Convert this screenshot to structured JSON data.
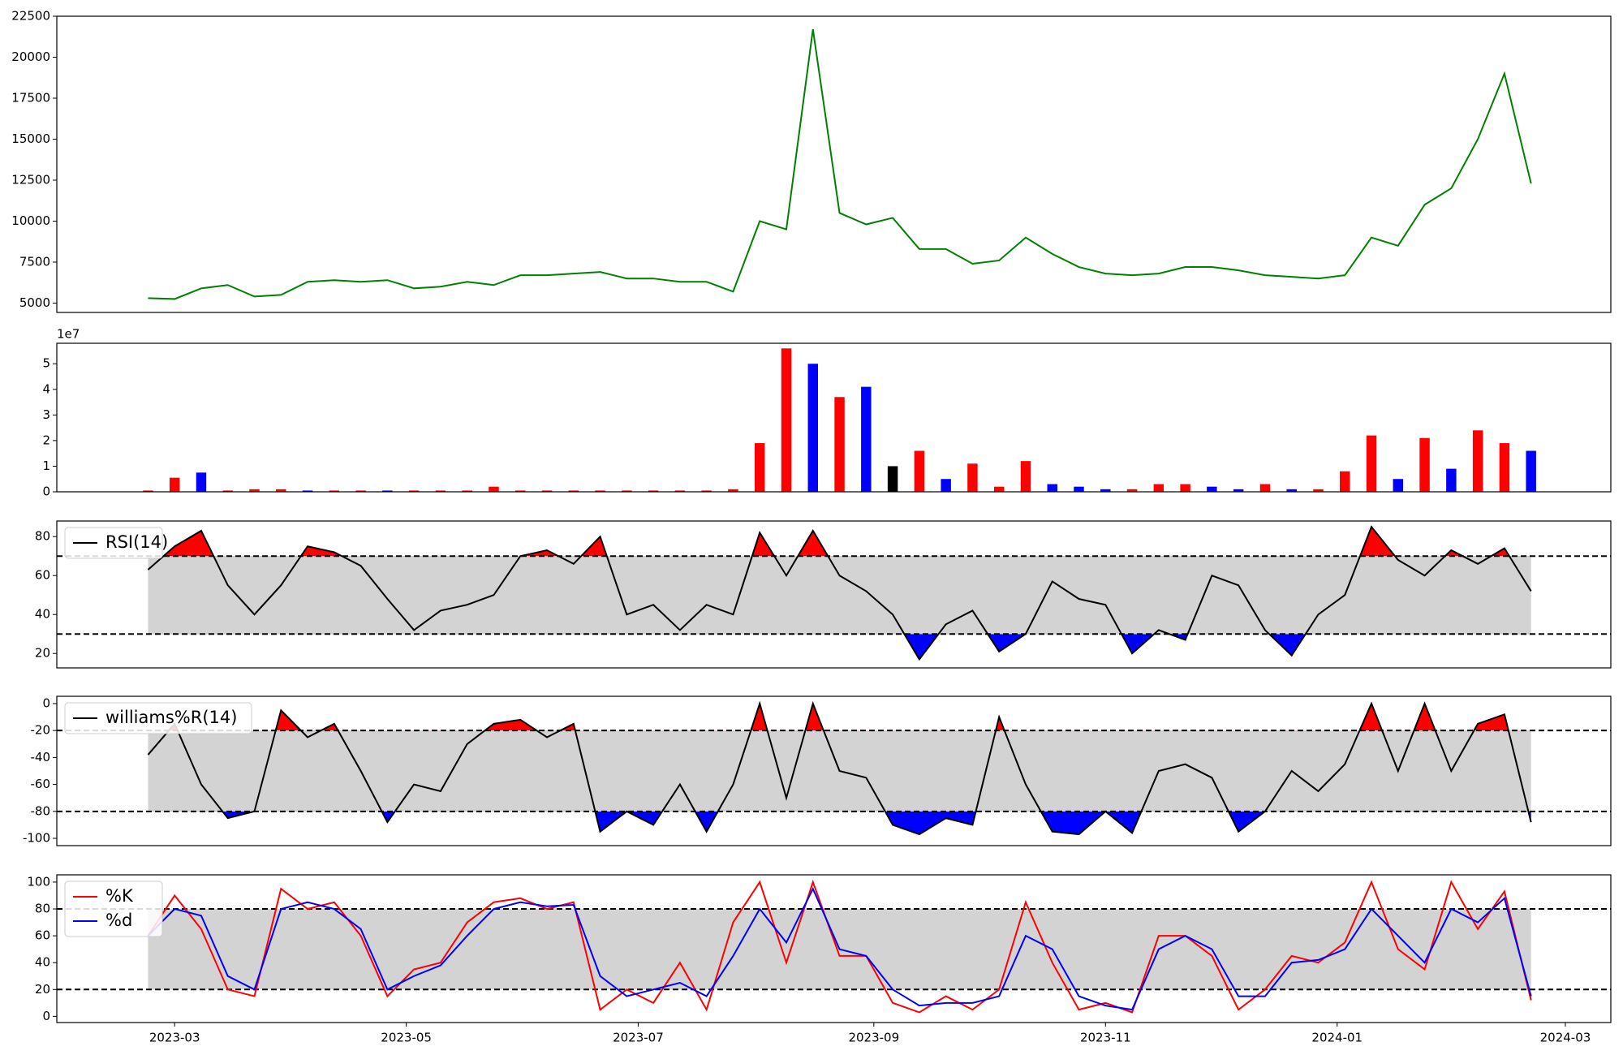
{
  "chart_data": [
    {
      "type": "line",
      "xlim": [
        -3.43,
        55
      ],
      "ylim": [
        4430,
        22500
      ],
      "yticks": [
        5000,
        7500,
        10000,
        12500,
        15000,
        17500,
        20000,
        22500
      ],
      "series": [
        {
          "color": "green",
          "values": [
            5300,
            5250,
            5900,
            6100,
            5400,
            5500,
            6300,
            6400,
            6300,
            6400,
            5900,
            6000,
            6300,
            6100,
            6700,
            6700,
            6800,
            6900,
            6500,
            6500,
            6300,
            6300,
            5700,
            10000,
            9500,
            21700,
            10500,
            9800,
            10200,
            8300,
            8300,
            7400,
            7600,
            9000,
            8000,
            7200,
            6800,
            6700,
            6800,
            7200,
            7200,
            7000,
            6700,
            6600,
            6500,
            6700,
            9000,
            8500,
            11000,
            12000,
            15000,
            19000,
            12300
          ]
        }
      ]
    },
    {
      "type": "bar",
      "xlim": [
        -3.43,
        55
      ],
      "ylim": [
        0,
        5.8
      ],
      "yticks": [
        0,
        1,
        2,
        3,
        4,
        5
      ],
      "offset_label": "1e7",
      "values": [
        0.05,
        0.55,
        0.75,
        0.05,
        0.1,
        0.1,
        0.05,
        0.05,
        0.05,
        0.05,
        0.05,
        0.05,
        0.05,
        0.2,
        0.05,
        0.05,
        0.05,
        0.05,
        0.05,
        0.05,
        0.05,
        0.05,
        0.1,
        1.9,
        5.6,
        5.0,
        3.7,
        4.1,
        1.0,
        1.6,
        0.5,
        1.1,
        0.2,
        1.2,
        0.3,
        0.2,
        0.1,
        0.1,
        0.3,
        0.3,
        0.2,
        0.1,
        0.3,
        0.1,
        0.1,
        0.8,
        2.2,
        0.5,
        2.1,
        0.9,
        2.4,
        1.9,
        1.6
      ],
      "colors": [
        "red",
        "red",
        "blue",
        "red",
        "red",
        "red",
        "blue",
        "red",
        "red",
        "blue",
        "red",
        "red",
        "red",
        "red",
        "red",
        "red",
        "red",
        "red",
        "red",
        "red",
        "red",
        "red",
        "red",
        "red",
        "red",
        "blue",
        "red",
        "blue",
        "black",
        "red",
        "blue",
        "red",
        "red",
        "red",
        "blue",
        "blue",
        "blue",
        "red",
        "red",
        "red",
        "blue",
        "blue",
        "red",
        "blue",
        "red",
        "red",
        "red",
        "blue",
        "red",
        "blue",
        "red",
        "red",
        "blue"
      ]
    },
    {
      "type": "line",
      "xlim": [
        -3.43,
        55
      ],
      "ylim": [
        12.6,
        88
      ],
      "yticks": [
        20,
        40,
        60,
        80
      ],
      "hlines": [
        70,
        30
      ],
      "band_color": "#d3d3d3",
      "fill_above_color": "red",
      "fill_below_color": "blue",
      "legend": "upper left",
      "series": [
        {
          "name": "RSI(14)",
          "color": "black",
          "values": [
            63,
            75,
            83,
            55,
            40,
            55,
            75,
            72,
            65,
            48,
            32,
            42,
            45,
            50,
            70,
            73,
            66,
            80,
            40,
            45,
            32,
            45,
            40,
            82,
            60,
            83,
            60,
            52,
            40,
            17,
            35,
            42,
            21,
            30,
            57,
            48,
            45,
            20,
            32,
            27,
            60,
            55,
            32,
            19,
            40,
            50,
            85,
            68,
            60,
            73,
            66,
            74,
            52
          ]
        }
      ]
    },
    {
      "type": "line",
      "xlim": [
        -3.43,
        55
      ],
      "ylim": [
        -105.4,
        5.4
      ],
      "yticks": [
        0,
        -20,
        -40,
        -60,
        -80,
        -100
      ],
      "hlines": [
        -20,
        -80
      ],
      "band_color": "#d3d3d3",
      "fill_above_color": "red",
      "fill_below_color": "blue",
      "legend": "upper left",
      "series": [
        {
          "name": "williams%R(14)",
          "color": "black",
          "values": [
            -38,
            -15,
            -60,
            -85,
            -80,
            -5,
            -25,
            -15,
            -50,
            -88,
            -60,
            -65,
            -30,
            -15,
            -12,
            -25,
            -15,
            -95,
            -80,
            -90,
            -60,
            -95,
            -60,
            0,
            -70,
            0,
            -50,
            -55,
            -90,
            -97,
            -85,
            -90,
            -10,
            -60,
            -95,
            -97,
            -80,
            -96,
            -50,
            -45,
            -55,
            -95,
            -80,
            -50,
            -65,
            -45,
            0,
            -50,
            0,
            -50,
            -15,
            -8,
            -88
          ]
        }
      ]
    },
    {
      "type": "line",
      "xlim": [
        -3.43,
        55
      ],
      "ylim": [
        -4.6,
        105.4
      ],
      "yticks": [
        0,
        20,
        40,
        60,
        80,
        100
      ],
      "hlines": [
        80,
        20
      ],
      "band_color": "#d3d3d3",
      "legend": "upper left",
      "xticks": [
        {
          "value": 1,
          "label": "2023-03"
        },
        {
          "value": 9.71,
          "label": "2023-05"
        },
        {
          "value": 18.43,
          "label": "2023-07"
        },
        {
          "value": 27.29,
          "label": "2023-09"
        },
        {
          "value": 36,
          "label": "2023-11"
        },
        {
          "value": 44.71,
          "label": "2024-01"
        },
        {
          "value": 53.29,
          "label": "2024-03"
        }
      ],
      "series": [
        {
          "name": "%K",
          "color": "red",
          "values": [
            60,
            90,
            65,
            20,
            15,
            95,
            80,
            85,
            60,
            15,
            35,
            40,
            70,
            85,
            88,
            80,
            85,
            5,
            20,
            10,
            40,
            5,
            70,
            100,
            40,
            100,
            45,
            45,
            10,
            3,
            15,
            5,
            20,
            85,
            40,
            5,
            10,
            3,
            60,
            60,
            45,
            5,
            20,
            45,
            40,
            55,
            100,
            50,
            35,
            100,
            65,
            93,
            12
          ]
        },
        {
          "name": "%d",
          "color": "blue",
          "values": [
            60,
            80,
            75,
            30,
            20,
            80,
            85,
            80,
            65,
            20,
            30,
            38,
            60,
            80,
            85,
            82,
            83,
            30,
            15,
            20,
            25,
            15,
            45,
            80,
            55,
            95,
            50,
            45,
            20,
            8,
            10,
            10,
            15,
            60,
            50,
            15,
            8,
            5,
            50,
            60,
            50,
            15,
            15,
            40,
            42,
            50,
            80,
            60,
            40,
            80,
            70,
            88,
            15
          ]
        }
      ]
    }
  ]
}
